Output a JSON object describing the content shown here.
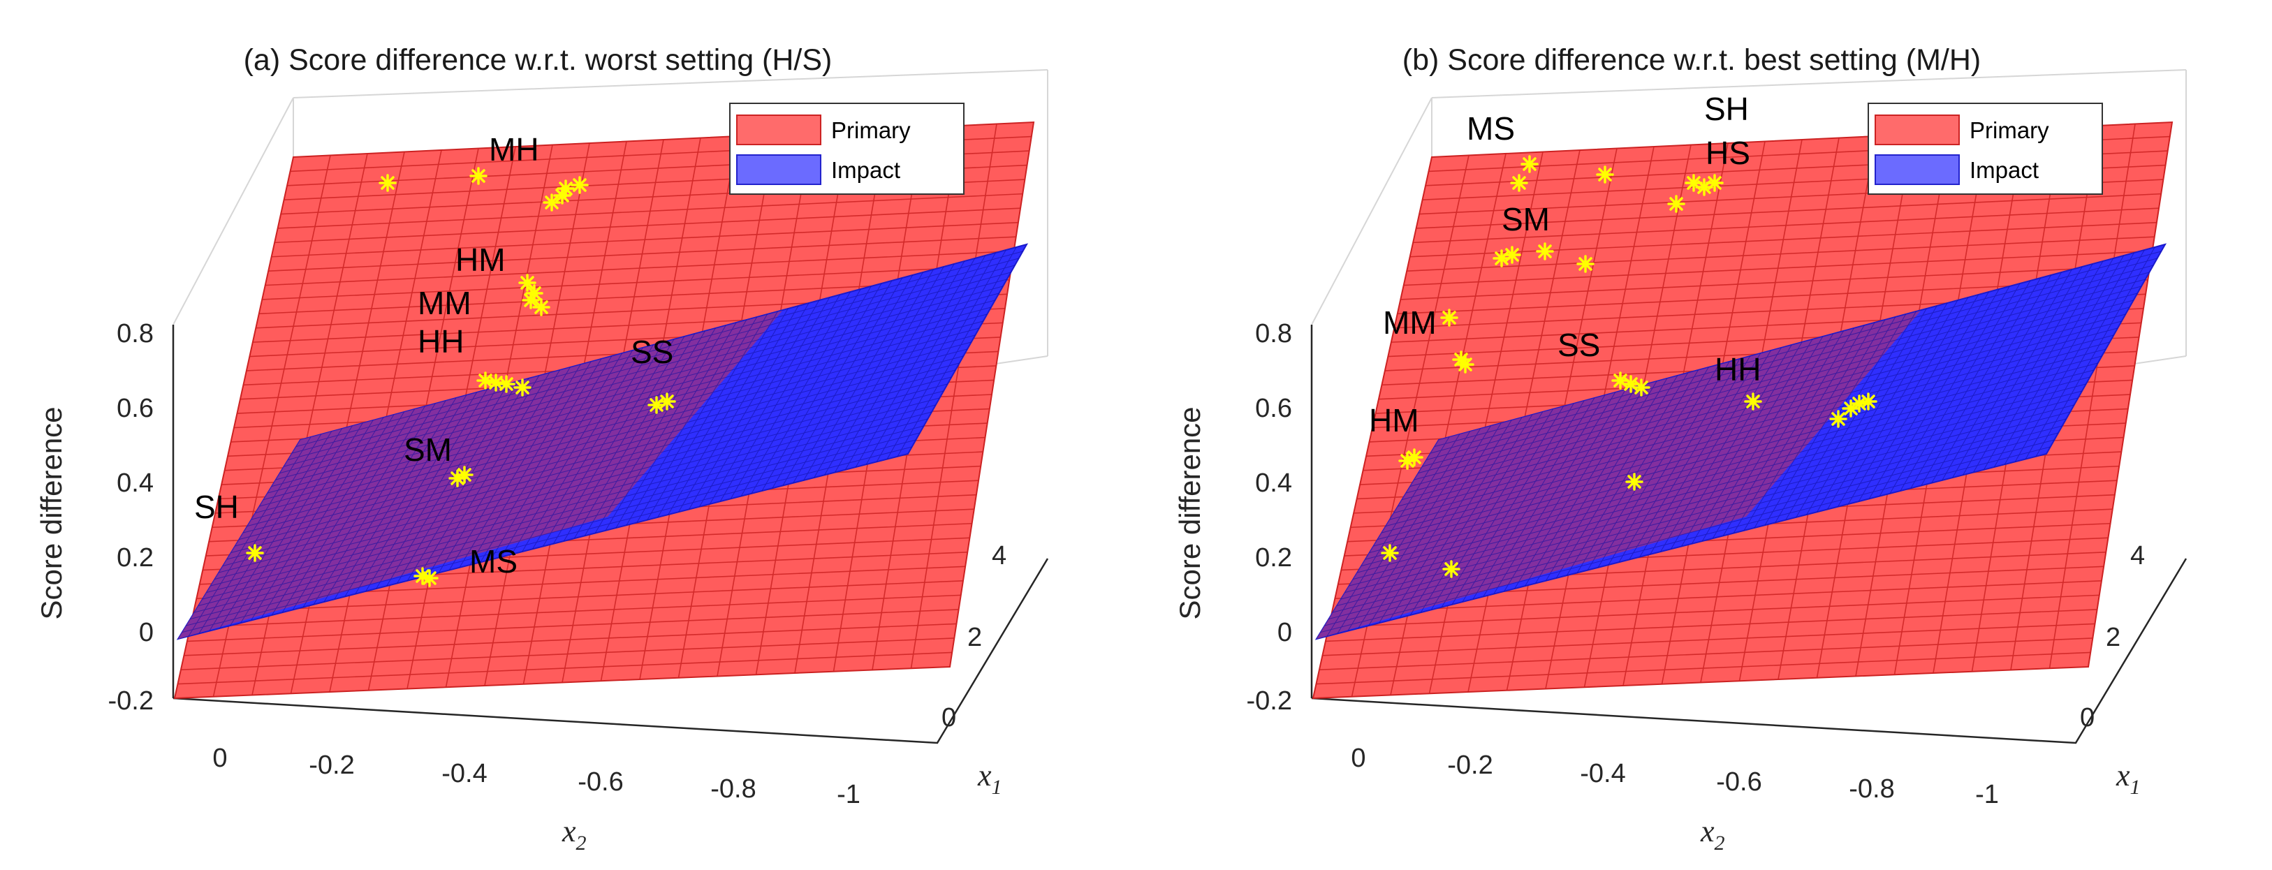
{
  "chart_data": [
    {
      "type": "surface3d",
      "title": "(a) Score difference w.r.t. worst setting (H/S)",
      "zlabel": "Score difference",
      "xlabel": "x",
      "xlabel_sub": "2",
      "x1label": "x",
      "x1label_sub": "1",
      "zlim": [
        -0.2,
        0.8
      ],
      "z_ticks": [
        "0.8",
        "0.6",
        "0.4",
        "0.2",
        "0",
        "-0.2"
      ],
      "x2_ticks": [
        "0",
        "-0.2",
        "-0.4",
        "-0.6",
        "-0.8",
        "-1"
      ],
      "x1_ticks": [
        "4",
        "2",
        "0"
      ],
      "legend": [
        "Primary",
        "Impact"
      ],
      "colors": {
        "primary": "#ff4d4d",
        "impact": "#2b2bff",
        "points": "#ffff00"
      },
      "points": [
        {
          "label": "MH",
          "x1": 3.5,
          "x2": -0.4,
          "z": 0.85
        },
        {
          "label": "HM",
          "x1": 3.0,
          "x2": -0.5,
          "z": 0.75
        },
        {
          "label": "MM",
          "x1": 2.5,
          "x2": -0.45,
          "z": 0.7
        },
        {
          "label": "HH",
          "x1": 2.3,
          "x2": -0.45,
          "z": 0.6
        },
        {
          "label": "SS",
          "x1": 2.0,
          "x2": -0.8,
          "z": 0.55
        },
        {
          "label": "SM",
          "x1": 1.5,
          "x2": -0.4,
          "z": 0.35
        },
        {
          "label": "SH",
          "x1": 0.2,
          "x2": -0.05,
          "z": 0.1
        },
        {
          "label": "MS",
          "x1": 0.3,
          "x2": -0.5,
          "z": 0.05
        }
      ]
    },
    {
      "type": "surface3d",
      "title": "(b) Score difference w.r.t. best setting (M/H)",
      "zlabel": "Score difference",
      "xlabel": "x",
      "xlabel_sub": "2",
      "x1label": "x",
      "x1label_sub": "1",
      "zlim": [
        -0.2,
        0.8
      ],
      "z_ticks": [
        "0.8",
        "0.6",
        "0.4",
        "0.2",
        "0",
        "-0.2"
      ],
      "x2_ticks": [
        "0",
        "-0.2",
        "-0.4",
        "-0.6",
        "-0.8",
        "-1"
      ],
      "x1_ticks": [
        "4",
        "2",
        "0"
      ],
      "legend": [
        "Primary",
        "Impact"
      ],
      "colors": {
        "primary": "#ff4d4d",
        "impact": "#2b2bff",
        "points": "#ffff00"
      },
      "points": [
        {
          "label": "MS",
          "x1": 3.8,
          "x2": -0.3,
          "z": 0.85
        },
        {
          "label": "SH",
          "x1": 3.8,
          "x2": -0.6,
          "z": 0.88
        },
        {
          "label": "HS",
          "x1": 3.6,
          "x2": -0.6,
          "z": 0.82
        },
        {
          "label": "SM",
          "x1": 3.0,
          "x2": -0.3,
          "z": 0.72
        },
        {
          "label": "MM",
          "x1": 2.2,
          "x2": -0.1,
          "z": 0.6
        },
        {
          "label": "SS",
          "x1": 2.1,
          "x2": -0.5,
          "z": 0.58
        },
        {
          "label": "HH",
          "x1": 1.8,
          "x2": -0.85,
          "z": 0.5
        },
        {
          "label": "HM",
          "x1": 1.2,
          "x2": -0.1,
          "z": 0.35
        }
      ]
    }
  ]
}
